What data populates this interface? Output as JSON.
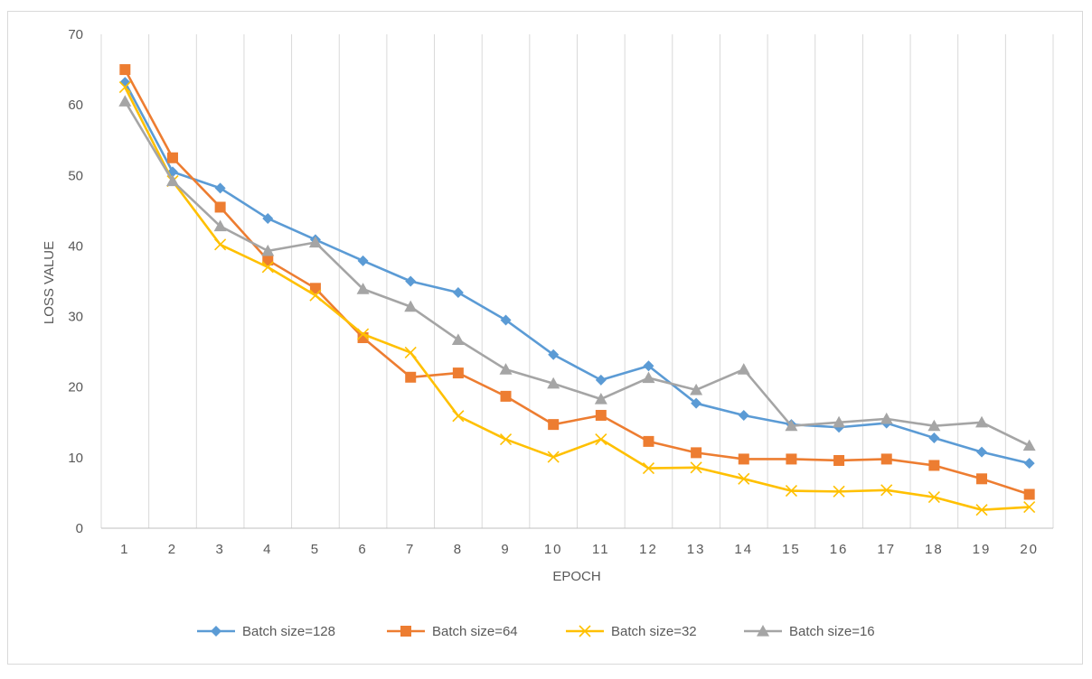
{
  "chart_data": {
    "type": "line",
    "title": "",
    "xlabel": "EPOCH",
    "ylabel": "LOSS VALUE",
    "ylim": [
      0,
      70
    ],
    "yticks": [
      "0",
      "10",
      "20",
      "30",
      "40",
      "50",
      "60",
      "70"
    ],
    "categories": [
      "1",
      "2",
      "3",
      "4",
      "5",
      "6",
      "7",
      "8",
      "9",
      "10",
      "11",
      "12",
      "13",
      "14",
      "15",
      "16",
      "17",
      "18",
      "19",
      "20"
    ],
    "grid": "vertical",
    "legend_position": "bottom",
    "series": [
      {
        "name": "Batch size=128",
        "color": "#5b9bd5",
        "marker": "diamond",
        "values": [
          63.2,
          50.5,
          48.2,
          43.9,
          40.9,
          37.9,
          35.0,
          33.4,
          29.5,
          24.6,
          21.0,
          23.0,
          17.7,
          16.0,
          14.7,
          14.3,
          14.9,
          12.8,
          10.8,
          9.2
        ]
      },
      {
        "name": "Batch size=64",
        "color": "#ed7d31",
        "marker": "square",
        "values": [
          65.0,
          52.5,
          45.5,
          38.0,
          34.0,
          27.0,
          21.4,
          22.0,
          18.7,
          14.7,
          16.0,
          12.3,
          10.7,
          9.8,
          9.8,
          9.6,
          9.8,
          8.9,
          7.0,
          4.8
        ]
      },
      {
        "name": "Batch size=32",
        "color": "#ffc000",
        "marker": "x",
        "values": [
          62.5,
          49.2,
          40.2,
          37.0,
          33.0,
          27.5,
          24.9,
          15.9,
          12.6,
          10.1,
          12.6,
          8.5,
          8.6,
          7.0,
          5.3,
          5.2,
          5.4,
          4.4,
          2.6,
          3.0
        ]
      },
      {
        "name": "Batch size=16",
        "color": "#a5a5a5",
        "marker": "triangle",
        "values": [
          60.5,
          49.2,
          42.8,
          39.3,
          40.5,
          33.9,
          31.4,
          26.7,
          22.5,
          20.5,
          18.3,
          21.3,
          19.6,
          22.5,
          14.5,
          15.0,
          15.5,
          14.5,
          15.0,
          11.7
        ]
      }
    ]
  }
}
